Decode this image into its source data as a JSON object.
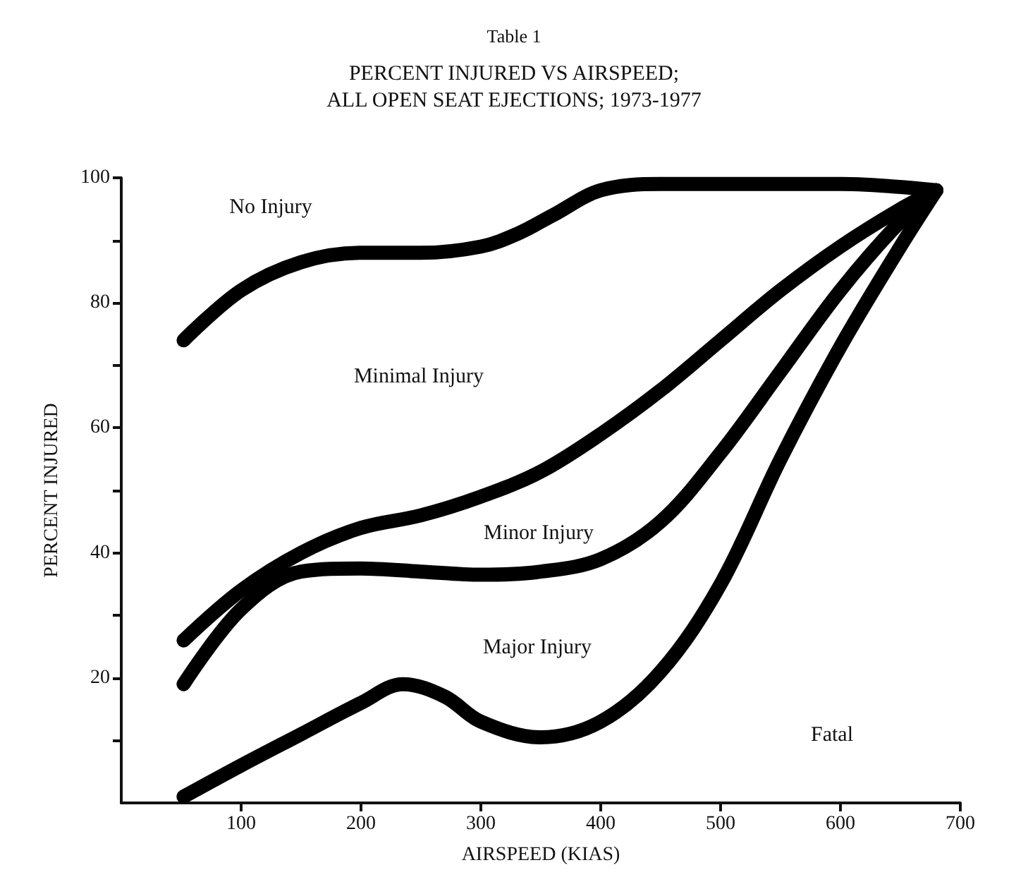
{
  "chart_data": {
    "type": "line",
    "title": "PERCENT INJURED VS AIRSPEED;\nALL OPEN SEAT EJECTIONS; 1973-1977",
    "xlabel": "AIRSPEED (KIAS)",
    "ylabel": "PERCENT INJURED",
    "annotations": [
      "Table 1",
      "No Injury",
      "Minimal Injury",
      "Minor Injury",
      "Major Injury",
      "Fatal"
    ],
    "series": [
      {
        "color": "#000000",
        "x": [
          52,
          100,
          150,
          200,
          250,
          300,
          330,
          360,
          400,
          450,
          500,
          600,
          680
        ],
        "values": [
          74,
          82,
          86.5,
          88,
          88,
          89,
          91,
          94,
          98,
          99,
          99,
          99,
          98
        ]
      },
      {
        "color": "#000000",
        "x": [
          52,
          100,
          150,
          200,
          250,
          300,
          350,
          400,
          450,
          500,
          550,
          600,
          650,
          680
        ],
        "values": [
          26,
          34,
          40,
          44,
          46,
          49,
          53,
          59,
          66,
          74,
          82,
          89,
          95,
          98
        ]
      },
      {
        "color": "#000000",
        "x": [
          52,
          100,
          150,
          200,
          250,
          300,
          350,
          400,
          450,
          500,
          550,
          600,
          650,
          680
        ],
        "values": [
          19,
          31,
          37,
          37.5,
          37,
          36.5,
          37,
          39,
          45,
          56,
          69,
          82,
          93,
          98
        ]
      },
      {
        "color": "#000000",
        "x": [
          52,
          100,
          150,
          200,
          235,
          270,
          300,
          350,
          400,
          450,
          500,
          550,
          600,
          650,
          680
        ],
        "values": [
          1,
          6,
          11,
          16,
          19,
          17,
          13,
          10.5,
          13,
          21,
          35,
          55,
          73,
          89,
          98
        ]
      }
    ],
    "xlim": [
      0,
      700
    ],
    "xticks": [
      100,
      200,
      300,
      400,
      500,
      600,
      700
    ],
    "ylim": [
      0,
      100
    ],
    "yticks": [
      {
        "value": 10,
        "label": null
      },
      20,
      {
        "value": 30,
        "label": null
      },
      40,
      {
        "value": 50,
        "label": null
      },
      60,
      {
        "value": 70,
        "label": null
      },
      80,
      {
        "value": 90,
        "label": null
      },
      100
    ],
    "grid": false,
    "line_style": "solid"
  }
}
